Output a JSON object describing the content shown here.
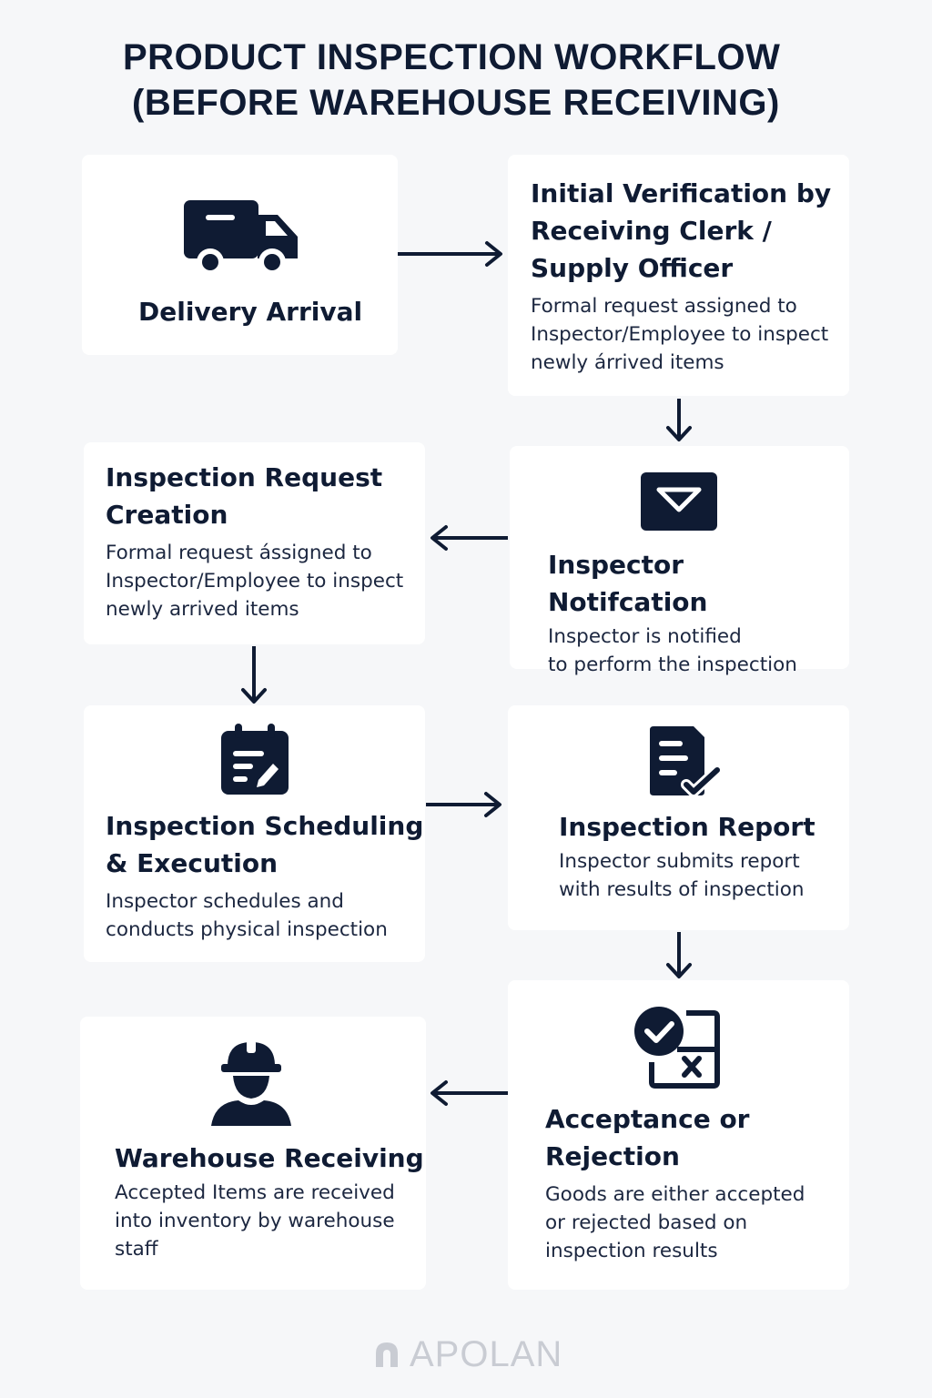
{
  "title": {
    "line1": "PRODUCT INSPECTION WORKFLOW",
    "line2": "(BEFORE WAREHOUSE RECEIVING)"
  },
  "steps": {
    "delivery": {
      "title": "Delivery Arrival",
      "icon": "truck-icon"
    },
    "verification": {
      "title_lines": [
        "Initial Verification by",
        "Receiving Clerk /",
        "Supply Officer"
      ],
      "desc_lines": [
        "Formal request assigned to",
        "Inspector/Employee to inspect",
        "newly árrived items"
      ]
    },
    "notification": {
      "title": "Inspector Notifcation",
      "desc_lines": [
        "Inspector is notified",
        "to perform the inspection"
      ],
      "icon": "envelope-icon"
    },
    "request": {
      "title_lines": [
        "Inspection Request",
        "Creation"
      ],
      "desc_lines": [
        "Formal request ássigned to",
        "Inspector/Employee to inspect",
        "newly arrived items"
      ]
    },
    "scheduling": {
      "title_lines": [
        "Inspection Scheduling",
        "& Execution"
      ],
      "desc_lines": [
        "Inspector schedules and",
        "conducts physical inspection"
      ],
      "icon": "calendar-edit-icon"
    },
    "report": {
      "title": "Inspection Report",
      "desc_lines": [
        "Inspector submits report",
        "with results of inspection"
      ],
      "icon": "document-check-icon"
    },
    "decision": {
      "title_lines": [
        "Acceptance or",
        "Rejection"
      ],
      "desc_lines": [
        "Goods are either accepted",
        "or rejected based on",
        "inspection results"
      ],
      "icon": "check-x-icon"
    },
    "warehouse": {
      "title": "Warehouse Receiving",
      "desc_lines": [
        "Accepted Items are received",
        "into inventory by warehouse",
        "staff"
      ],
      "icon": "worker-helmet-icon"
    }
  },
  "footer": {
    "brand": "APOLAN",
    "logo_icon": "apolan-logo-icon"
  },
  "colors": {
    "primary": "#0f1b33",
    "background": "#f6f7f9",
    "card": "#ffffff",
    "footer": "#c9ccd3"
  }
}
